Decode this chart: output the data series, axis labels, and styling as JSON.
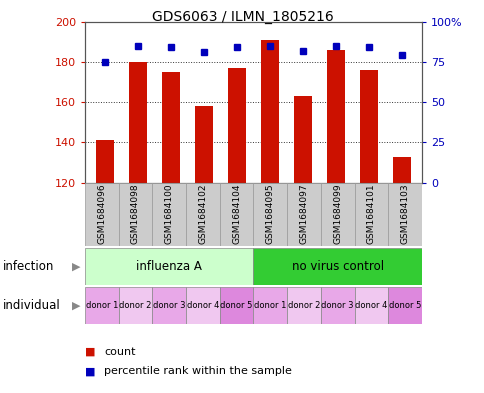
{
  "title": "GDS6063 / ILMN_1805216",
  "samples": [
    "GSM1684096",
    "GSM1684098",
    "GSM1684100",
    "GSM1684102",
    "GSM1684104",
    "GSM1684095",
    "GSM1684097",
    "GSM1684099",
    "GSM1684101",
    "GSM1684103"
  ],
  "counts": [
    141,
    180,
    175,
    158,
    177,
    191,
    163,
    186,
    176,
    133
  ],
  "percentiles": [
    75,
    85,
    84,
    81,
    84,
    85,
    82,
    85,
    84,
    79
  ],
  "ylim_left": [
    120,
    200
  ],
  "ylim_right": [
    0,
    100
  ],
  "yticks_left": [
    120,
    140,
    160,
    180,
    200
  ],
  "yticks_right": [
    0,
    25,
    50,
    75,
    100
  ],
  "infection_groups": [
    {
      "label": "influenza A",
      "start": 0,
      "end": 5,
      "color": "#ccffcc"
    },
    {
      "label": "no virus control",
      "start": 5,
      "end": 10,
      "color": "#33cc33"
    }
  ],
  "individual_labels": [
    "donor 1",
    "donor 2",
    "donor 3",
    "donor 4",
    "donor 5",
    "donor 1",
    "donor 2",
    "donor 3",
    "donor 4",
    "donor 5"
  ],
  "individual_colors": [
    "#e8a8e8",
    "#f0c8f0",
    "#e8a8e8",
    "#f0c8f0",
    "#dd88dd",
    "#e8a8e8",
    "#f0c8f0",
    "#e8a8e8",
    "#f0c8f0",
    "#dd88dd"
  ],
  "bar_color": "#cc1100",
  "dot_color": "#0000bb",
  "grid_color": "#333333",
  "axis_color_left": "#cc1100",
  "axis_color_right": "#0000bb",
  "sample_box_color": "#cccccc",
  "legend_items": [
    {
      "color": "#cc1100",
      "label": "count"
    },
    {
      "color": "#0000bb",
      "label": "percentile rank within the sample"
    }
  ]
}
